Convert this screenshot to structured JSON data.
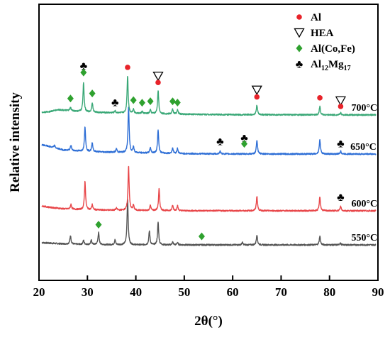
{
  "chart_data": {
    "type": "line",
    "xlabel": "2θ(°)",
    "ylabel": "Relative intensity",
    "xlim": [
      20,
      90
    ],
    "xticks": [
      20,
      30,
      40,
      50,
      60,
      70,
      80,
      90
    ],
    "y_ticks_shown": false,
    "grid": false,
    "legend_position": "top-right",
    "legend": [
      {
        "symbol": "red-circle",
        "label_main": "Al",
        "label_sub": "",
        "label_rest": ""
      },
      {
        "symbol": "open-triangle",
        "label_main": "HEA",
        "label_sub": "",
        "label_rest": ""
      },
      {
        "symbol": "green-diamond",
        "label_main": "Al(Co,Fe)",
        "label_sub": "",
        "label_rest": ""
      },
      {
        "symbol": "club",
        "label_main": "Al",
        "label_sub": "12",
        "label_rest": "Mg",
        "label_sub2": "17"
      }
    ],
    "colors": {
      "s550": "#555555",
      "s600": "#e8474a",
      "s650": "#2f6fd6",
      "s700": "#3aa877",
      "al_marker": "#e8232a",
      "alcofe_marker": "#2fa12f"
    },
    "series": [
      {
        "name": "550°C",
        "color": "#555555",
        "baseline": [
          [
            20.6,
            0.55
          ],
          [
            22,
            0.45
          ],
          [
            24,
            0.3
          ],
          [
            28,
            0.15
          ],
          [
            34,
            0.05
          ],
          [
            40,
            0.0
          ],
          [
            90,
            0.0
          ]
        ],
        "peaks": [
          [
            26.5,
            2.1
          ],
          [
            29.2,
            1.0
          ],
          [
            30.8,
            1.0
          ],
          [
            32.3,
            3.0
          ],
          [
            35.7,
            1.2
          ],
          [
            38.3,
            11.4
          ],
          [
            42.8,
            3.4
          ],
          [
            44.6,
            5.6
          ],
          [
            47.6,
            0.7
          ],
          [
            48.6,
            0.6
          ],
          [
            62.0,
            0.6
          ],
          [
            65.0,
            2.5
          ],
          [
            78.0,
            2.2
          ],
          [
            82.2,
            0.5
          ]
        ]
      },
      {
        "name": "600°C",
        "color": "#e8474a",
        "baseline": [
          [
            20.6,
            1.2
          ],
          [
            22,
            0.9
          ],
          [
            25,
            0.5
          ],
          [
            30,
            0.25
          ],
          [
            40,
            0.1
          ],
          [
            50,
            0.02
          ],
          [
            90,
            0.0
          ]
        ],
        "peaks": [
          [
            26.6,
            1.2
          ],
          [
            29.5,
            7.0
          ],
          [
            31.0,
            1.3
          ],
          [
            36.0,
            0.5
          ],
          [
            38.5,
            11.0
          ],
          [
            39.5,
            1.3
          ],
          [
            43.0,
            1.3
          ],
          [
            44.8,
            5.3
          ],
          [
            47.6,
            1.3
          ],
          [
            48.6,
            1.2
          ],
          [
            65.0,
            3.6
          ],
          [
            78.0,
            3.5
          ],
          [
            82.3,
            1.1
          ]
        ]
      },
      {
        "name": "650°C",
        "color": "#2f6fd6",
        "baseline": [
          [
            20.6,
            2.3
          ],
          [
            22,
            1.9
          ],
          [
            25,
            1.0
          ],
          [
            30,
            0.6
          ],
          [
            40,
            0.3
          ],
          [
            50,
            0.1
          ],
          [
            60,
            0.02
          ],
          [
            90,
            0.0
          ]
        ],
        "peaks": [
          [
            23.2,
            0.6
          ],
          [
            26.6,
            1.3
          ],
          [
            29.5,
            6.2
          ],
          [
            31.0,
            2.2
          ],
          [
            36.0,
            0.9
          ],
          [
            38.5,
            11.4
          ],
          [
            39.5,
            1.5
          ],
          [
            43.0,
            1.4
          ],
          [
            44.6,
            5.8
          ],
          [
            47.6,
            1.4
          ],
          [
            48.6,
            1.3
          ],
          [
            57.4,
            0.6
          ],
          [
            65.0,
            3.4
          ],
          [
            78.0,
            3.6
          ],
          [
            82.3,
            0.7
          ]
        ]
      },
      {
        "name": "700°C",
        "color": "#3aa877",
        "baseline": [
          [
            20.6,
            0.6
          ],
          [
            22,
            0.8
          ],
          [
            24,
            1.3
          ],
          [
            27,
            1.0
          ],
          [
            30,
            0.7
          ],
          [
            40,
            0.4
          ],
          [
            50,
            0.2
          ],
          [
            60,
            0.08
          ],
          [
            90,
            0.0
          ]
        ],
        "peaks": [
          [
            26.5,
            0.8
          ],
          [
            29.2,
            7.2
          ],
          [
            31.0,
            2.4
          ],
          [
            35.7,
            0.5
          ],
          [
            38.3,
            9.2
          ],
          [
            39.5,
            1.0
          ],
          [
            41.3,
            0.5
          ],
          [
            43.0,
            0.9
          ],
          [
            44.6,
            5.8
          ],
          [
            47.6,
            1.2
          ],
          [
            48.6,
            1.1
          ],
          [
            65.0,
            2.4
          ],
          [
            78.0,
            2.1
          ],
          [
            82.3,
            0.5
          ]
        ]
      }
    ],
    "annotations": {
      "labels": [
        {
          "text": "550°C",
          "x": 84.5,
          "series": "550°C"
        },
        {
          "text": "600°C",
          "x": 84.5,
          "series": "600°C"
        },
        {
          "text": "650°C",
          "x": 84.3,
          "series": "650°C"
        },
        {
          "text": "700°C",
          "x": 84.5,
          "series": "700°C"
        }
      ],
      "markers": [
        {
          "type": "club",
          "x": 29.2,
          "series": "700°C",
          "above": 3.5
        },
        {
          "type": "green-diamond",
          "x": 29.2,
          "series": "700°C",
          "above": 1.8
        },
        {
          "type": "red-circle",
          "x": 38.3,
          "series": "700°C",
          "above": 1.4
        },
        {
          "type": "open-triangle",
          "x": 44.6,
          "series": "700°C",
          "above": 2.8
        },
        {
          "type": "red-circle",
          "x": 44.6,
          "series": "700°C",
          "above": 1.2
        },
        {
          "type": "green-diamond",
          "x": 26.5,
          "series": "700°C",
          "above": 1.5
        },
        {
          "type": "green-diamond",
          "x": 31.0,
          "series": "700°C",
          "above": 1.5
        },
        {
          "type": "club",
          "x": 35.7,
          "series": "700°C",
          "above": 1.4
        },
        {
          "type": "green-diamond",
          "x": 39.5,
          "series": "700°C",
          "above": 1.4
        },
        {
          "type": "green-diamond",
          "x": 41.3,
          "series": "700°C",
          "above": 1.4
        },
        {
          "type": "green-diamond",
          "x": 43.0,
          "series": "700°C",
          "above": 1.4
        },
        {
          "type": "green-diamond",
          "x": 47.6,
          "series": "700°C",
          "above": 1.2
        },
        {
          "type": "green-diamond",
          "x": 48.6,
          "series": "700°C",
          "above": 1.0
        },
        {
          "type": "open-triangle",
          "x": 65.0,
          "series": "700°C",
          "above": 3.0
        },
        {
          "type": "red-circle",
          "x": 65.0,
          "series": "700°C",
          "above": 1.3
        },
        {
          "type": "red-circle",
          "x": 78.0,
          "series": "700°C",
          "above": 1.4
        },
        {
          "type": "open-triangle",
          "x": 82.3,
          "series": "700°C",
          "above": 2.3
        },
        {
          "type": "red-circle",
          "x": 82.3,
          "series": "700°C",
          "above": 0.9
        },
        {
          "type": "club",
          "x": 57.4,
          "series": "650°C",
          "above": 1.8
        },
        {
          "type": "club",
          "x": 62.4,
          "series": "650°C",
          "above": 3.3
        },
        {
          "type": "green-diamond",
          "x": 62.4,
          "series": "650°C",
          "above": 1.8
        },
        {
          "type": "club",
          "x": 82.3,
          "series": "650°C",
          "above": 1.2
        },
        {
          "type": "club",
          "x": 82.3,
          "series": "600°C",
          "above": 1.6
        },
        {
          "type": "green-diamond",
          "x": 32.3,
          "series": "550°C",
          "above": 1.2
        },
        {
          "type": "green-diamond",
          "x": 53.6,
          "series": "550°C",
          "above": 1.4
        }
      ]
    }
  }
}
